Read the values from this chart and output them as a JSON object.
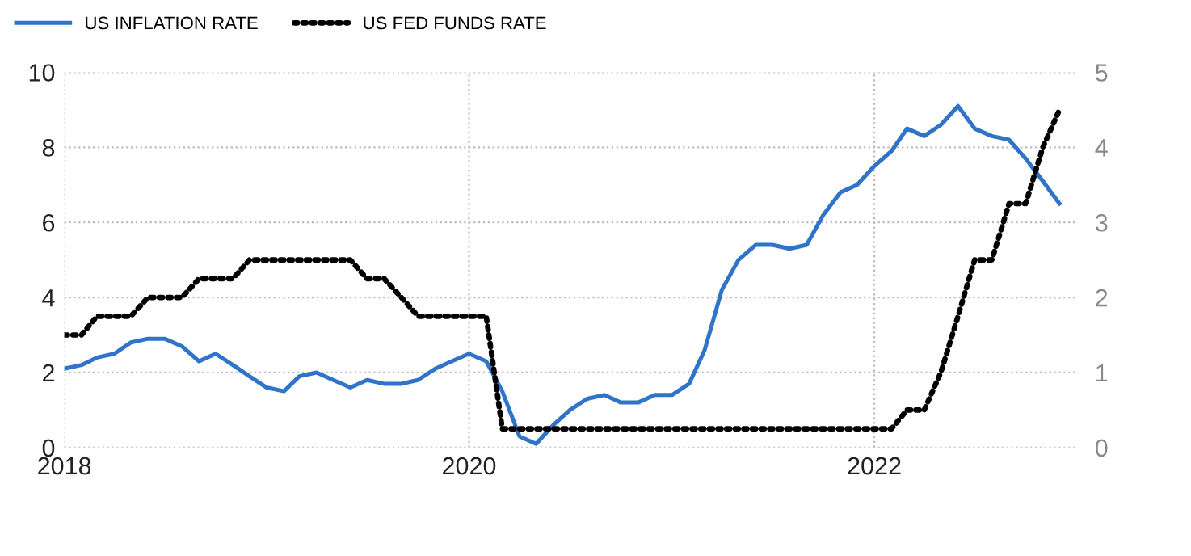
{
  "chart_data": {
    "type": "line",
    "x": [
      "2018-01",
      "2018-02",
      "2018-03",
      "2018-04",
      "2018-05",
      "2018-06",
      "2018-07",
      "2018-08",
      "2018-09",
      "2018-10",
      "2018-11",
      "2018-12",
      "2019-01",
      "2019-02",
      "2019-03",
      "2019-04",
      "2019-05",
      "2019-06",
      "2019-07",
      "2019-08",
      "2019-09",
      "2019-10",
      "2019-11",
      "2019-12",
      "2020-01",
      "2020-02",
      "2020-03",
      "2020-04",
      "2020-05",
      "2020-06",
      "2020-07",
      "2020-08",
      "2020-09",
      "2020-10",
      "2020-11",
      "2020-12",
      "2021-01",
      "2021-02",
      "2021-03",
      "2021-04",
      "2021-05",
      "2021-06",
      "2021-07",
      "2021-08",
      "2021-09",
      "2021-10",
      "2021-11",
      "2021-12",
      "2022-01",
      "2022-02",
      "2022-03",
      "2022-04",
      "2022-05",
      "2022-06",
      "2022-07",
      "2022-08",
      "2022-09",
      "2022-10",
      "2022-11",
      "2022-12"
    ],
    "series": [
      {
        "name": "US INFLATION RATE",
        "color": "#2f74c8",
        "line_style": "solid",
        "values": [
          2.1,
          2.2,
          2.4,
          2.5,
          2.8,
          2.9,
          2.9,
          2.7,
          2.3,
          2.5,
          2.2,
          1.9,
          1.6,
          1.5,
          1.9,
          2.0,
          1.8,
          1.6,
          1.8,
          1.7,
          1.7,
          1.8,
          2.1,
          2.3,
          2.5,
          2.3,
          1.5,
          0.3,
          0.1,
          0.6,
          1.0,
          1.3,
          1.4,
          1.2,
          1.2,
          1.4,
          1.4,
          1.7,
          2.6,
          4.2,
          5.0,
          5.4,
          5.4,
          5.3,
          5.4,
          6.2,
          6.8,
          7.0,
          7.5,
          7.9,
          8.5,
          8.3,
          8.6,
          9.1,
          8.5,
          8.3,
          8.2,
          7.7,
          7.1,
          6.5
        ]
      },
      {
        "name": "US FED FUNDS RATE",
        "color": "#000000",
        "line_style": "dotted",
        "axis": "y2",
        "values": [
          1.5,
          1.5,
          1.75,
          1.75,
          1.75,
          2.0,
          2.0,
          2.0,
          2.25,
          2.25,
          2.25,
          2.5,
          2.5,
          2.5,
          2.5,
          2.5,
          2.5,
          2.5,
          2.25,
          2.25,
          2.0,
          1.75,
          1.75,
          1.75,
          1.75,
          1.75,
          0.25,
          0.25,
          0.25,
          0.25,
          0.25,
          0.25,
          0.25,
          0.25,
          0.25,
          0.25,
          0.25,
          0.25,
          0.25,
          0.25,
          0.25,
          0.25,
          0.25,
          0.25,
          0.25,
          0.25,
          0.25,
          0.25,
          0.25,
          0.25,
          0.5,
          0.5,
          1.0,
          1.75,
          2.5,
          2.5,
          3.25,
          3.25,
          4.0,
          4.5
        ]
      }
    ],
    "xlim": [
      "2018-01",
      "2023-01"
    ],
    "xticks": [
      {
        "value": "2018-01",
        "label": "2018"
      },
      {
        "value": "2020-01",
        "label": "2020"
      },
      {
        "value": "2022-01",
        "label": "2022"
      }
    ],
    "ylim": [
      0,
      10
    ],
    "yticks": [
      0,
      2,
      4,
      6,
      8,
      10
    ],
    "y2lim": [
      0,
      5
    ],
    "y2ticks": [
      0,
      1,
      2,
      3,
      4,
      5
    ],
    "grid": true,
    "legend": "top left",
    "marker": "none"
  }
}
